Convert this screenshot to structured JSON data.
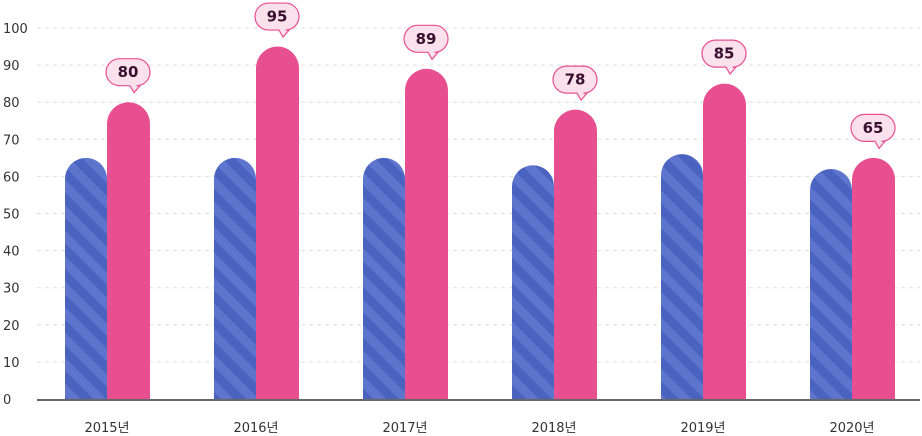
{
  "chart_data": {
    "type": "bar",
    "categories": [
      "2015년",
      "2016년",
      "2017년",
      "2018년",
      "2019년",
      "2020년"
    ],
    "series": [
      {
        "values": [
          65,
          65,
          65,
          63,
          66,
          62
        ],
        "color": "#4b63c0",
        "pattern": "diagonal-stripes"
      },
      {
        "values": [
          80,
          95,
          89,
          78,
          85,
          65
        ],
        "color": "#e84f91",
        "labeled": true
      }
    ],
    "ylim": [
      0,
      100
    ],
    "yticks": [
      0,
      10,
      20,
      30,
      40,
      50,
      60,
      70,
      80,
      90,
      100
    ],
    "grid": true,
    "title": "",
    "xlabel": "",
    "ylabel": "",
    "colors": {
      "bubble_fill": "#fbe1ec",
      "bubble_stroke": "#e84f91",
      "grid": "#dddddd",
      "axis": "#333333"
    }
  }
}
